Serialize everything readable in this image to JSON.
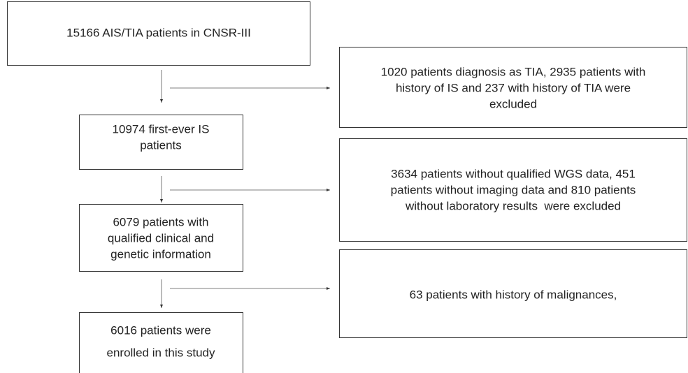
{
  "nodes": [
    {
      "lines": [
        "15166 AIS/TIA patients in CNSR-III"
      ]
    },
    {
      "lines": [
        "10974 first-ever IS",
        "patients"
      ]
    },
    {
      "lines": [
        "6079 patients with",
        "qualified clinical and",
        "genetic information"
      ]
    },
    {
      "lines": [
        "6016 patients were",
        "enrolled in this study"
      ]
    }
  ],
  "exclusions": [
    {
      "lines": [
        "1020 patients diagnosis as TIA, 2935 patients with",
        "history of IS and 237 with history of TIA were",
        "excluded"
      ]
    },
    {
      "lines": [
        "3634 patients without qualified WGS data, 451",
        "patients without imaging data and 810 patients",
        "without laboratory results  were excluded"
      ]
    },
    {
      "lines": [
        "63 patients with history of malignances,"
      ]
    }
  ]
}
